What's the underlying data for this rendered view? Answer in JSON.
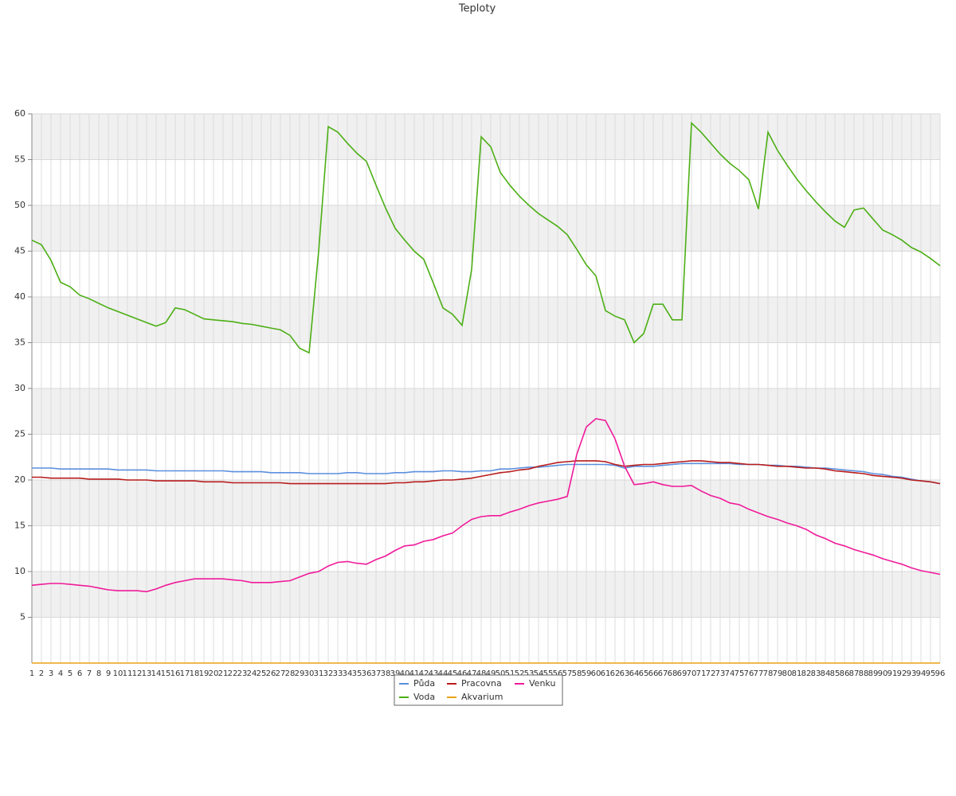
{
  "chart_data": {
    "type": "line",
    "title": "Teploty",
    "categories": [
      1,
      2,
      3,
      4,
      5,
      6,
      7,
      8,
      9,
      10,
      11,
      12,
      13,
      14,
      15,
      16,
      17,
      18,
      19,
      20,
      21,
      22,
      23,
      24,
      25,
      26,
      27,
      28,
      29,
      30,
      31,
      32,
      33,
      34,
      35,
      36,
      37,
      38,
      39,
      40,
      41,
      42,
      43,
      44,
      45,
      46,
      47,
      48,
      49,
      50,
      51,
      52,
      53,
      54,
      55,
      56,
      57,
      58,
      59,
      60,
      61,
      62,
      63,
      64,
      65,
      66,
      67,
      68,
      69,
      70,
      71,
      72,
      73,
      74,
      75,
      76,
      77,
      78,
      79,
      80,
      81,
      82,
      83,
      84,
      85,
      86,
      87,
      88,
      89,
      90,
      91,
      92,
      93,
      94,
      95,
      96
    ],
    "series": [
      {
        "name": "Půda",
        "color": "#5b8fde",
        "values": [
          21.3,
          21.3,
          21.3,
          21.2,
          21.2,
          21.2,
          21.2,
          21.2,
          21.2,
          21.1,
          21.1,
          21.1,
          21.1,
          21,
          21,
          21,
          21,
          21,
          21,
          21,
          21,
          20.9,
          20.9,
          20.9,
          20.9,
          20.8,
          20.8,
          20.8,
          20.8,
          20.7,
          20.7,
          20.7,
          20.7,
          20.8,
          20.8,
          20.7,
          20.7,
          20.7,
          20.8,
          20.8,
          20.9,
          20.9,
          20.9,
          21,
          21,
          20.9,
          20.9,
          21,
          21,
          21.2,
          21.2,
          21.3,
          21.4,
          21.4,
          21.5,
          21.6,
          21.7,
          21.7,
          21.7,
          21.7,
          21.7,
          21.6,
          21.3,
          21.5,
          21.5,
          21.5,
          21.6,
          21.7,
          21.8,
          21.8,
          21.8,
          21.8,
          21.8,
          21.8,
          21.7,
          21.7,
          21.7,
          21.6,
          21.6,
          21.5,
          21.5,
          21.4,
          21.3,
          21.3,
          21.2,
          21.1,
          21,
          20.9,
          20.7,
          20.6,
          20.4,
          20.3,
          20.1,
          19.9,
          19.8,
          19.6
        ]
      },
      {
        "name": "Voda",
        "color": "#4caf15",
        "values": [
          46.2,
          45.7,
          44,
          41.6,
          41.1,
          40.2,
          39.8,
          39.3,
          38.8,
          38.4,
          38,
          37.6,
          37.2,
          36.8,
          37.2,
          38.8,
          38.6,
          38.1,
          37.6,
          37.5,
          37.4,
          37.3,
          37.1,
          37,
          36.8,
          36.6,
          36.4,
          35.8,
          34.4,
          33.9,
          45,
          58.6,
          58,
          56.8,
          55.7,
          54.8,
          52.2,
          49.7,
          47.5,
          46.2,
          45,
          44.1,
          41.5,
          38.8,
          38.1,
          36.9,
          43,
          57.5,
          56.4,
          53.6,
          52.2,
          51,
          50,
          49.1,
          48.4,
          47.7,
          46.8,
          45.2,
          43.5,
          42.3,
          38.5,
          37.9,
          37.5,
          35,
          36,
          39.2,
          39.2,
          37.5,
          37.5,
          59,
          58,
          56.8,
          55.6,
          54.6,
          53.8,
          52.8,
          49.6,
          58,
          56,
          54.4,
          52.9,
          51.6,
          50.4,
          49.3,
          48.3,
          47.6,
          49.5,
          49.7,
          48.5,
          47.3,
          46.8,
          46.2,
          45.4,
          44.9,
          44.2,
          43.4
        ]
      },
      {
        "name": "Pracovna",
        "color": "#b81c1c",
        "values": [
          20.3,
          20.3,
          20.2,
          20.2,
          20.2,
          20.2,
          20.1,
          20.1,
          20.1,
          20.1,
          20,
          20,
          20,
          19.9,
          19.9,
          19.9,
          19.9,
          19.9,
          19.8,
          19.8,
          19.8,
          19.7,
          19.7,
          19.7,
          19.7,
          19.7,
          19.7,
          19.6,
          19.6,
          19.6,
          19.6,
          19.6,
          19.6,
          19.6,
          19.6,
          19.6,
          19.6,
          19.6,
          19.7,
          19.7,
          19.8,
          19.8,
          19.9,
          20,
          20,
          20.1,
          20.2,
          20.4,
          20.6,
          20.8,
          20.9,
          21.1,
          21.2,
          21.5,
          21.7,
          21.9,
          22,
          22.1,
          22.1,
          22.1,
          22,
          21.7,
          21.5,
          21.6,
          21.7,
          21.7,
          21.8,
          21.9,
          22,
          22.1,
          22.1,
          22,
          21.9,
          21.9,
          21.8,
          21.7,
          21.7,
          21.6,
          21.5,
          21.5,
          21.4,
          21.3,
          21.3,
          21.2,
          21,
          20.9,
          20.8,
          20.7,
          20.5,
          20.4,
          20.3,
          20.2,
          20,
          19.9,
          19.8,
          19.6
        ]
      },
      {
        "name": "Akvarium",
        "color": "#e8a317",
        "values": [
          0,
          0,
          0,
          0,
          0,
          0,
          0,
          0,
          0,
          0,
          0,
          0,
          0,
          0,
          0,
          0,
          0,
          0,
          0,
          0,
          0,
          0,
          0,
          0,
          0,
          0,
          0,
          0,
          0,
          0,
          0,
          0,
          0,
          0,
          0,
          0,
          0,
          0,
          0,
          0,
          0,
          0,
          0,
          0,
          0,
          0,
          0,
          0,
          0,
          0,
          0,
          0,
          0,
          0,
          0,
          0,
          0,
          0,
          0,
          0,
          0,
          0,
          0,
          0,
          0,
          0,
          0,
          0,
          0,
          0,
          0,
          0,
          0,
          0,
          0,
          0,
          0,
          0,
          0,
          0,
          0,
          0,
          0,
          0,
          0,
          0,
          0,
          0,
          0,
          0,
          0,
          0,
          0,
          0,
          0,
          0
        ]
      },
      {
        "name": "Venku",
        "color": "#f01a9a",
        "values": [
          8.5,
          8.6,
          8.7,
          8.7,
          8.6,
          8.5,
          8.4,
          8.2,
          8,
          7.9,
          7.9,
          7.9,
          7.8,
          8.1,
          8.5,
          8.8,
          9,
          9.2,
          9.2,
          9.2,
          9.2,
          9.1,
          9,
          8.8,
          8.8,
          8.8,
          8.9,
          9,
          9.4,
          9.8,
          10,
          10.6,
          11,
          11.1,
          10.9,
          10.8,
          11.3,
          11.7,
          12.3,
          12.8,
          12.9,
          13.3,
          13.5,
          13.9,
          14.2,
          15,
          15.7,
          16,
          16.1,
          16.1,
          16.5,
          16.8,
          17.2,
          17.5,
          17.7,
          17.9,
          18.2,
          22.8,
          25.8,
          26.7,
          26.5,
          24.5,
          21.5,
          19.5,
          19.6,
          19.8,
          19.5,
          19.3,
          19.3,
          19.4,
          18.8,
          18.3,
          18,
          17.5,
          17.3,
          16.8,
          16.4,
          16,
          15.7,
          15.3,
          15,
          14.6,
          14,
          13.6,
          13.1,
          12.8,
          12.4,
          12.1,
          11.8,
          11.4,
          11.1,
          10.8,
          10.4,
          10.1,
          9.9,
          9.7
        ]
      }
    ],
    "ylim": [
      0,
      60
    ],
    "yticks": [
      5,
      10,
      15,
      20,
      25,
      30,
      35,
      40,
      45,
      50,
      55,
      60
    ],
    "grid": true
  }
}
